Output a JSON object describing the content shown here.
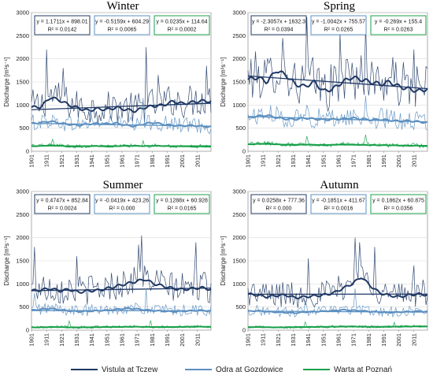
{
  "chart_data": {
    "type": "line",
    "x_ticks": [
      "1901",
      "1911",
      "1921",
      "1931",
      "1941",
      "1951",
      "1961",
      "1971",
      "1981",
      "1991",
      "2001",
      "2011"
    ],
    "x_range": [
      1901,
      2020
    ],
    "ylabel": "Discharge [m³s⁻¹]",
    "ylim": [
      0,
      3000
    ],
    "y_ticks": [
      0,
      500,
      1000,
      1500,
      2000,
      2500,
      3000
    ],
    "legend": {
      "position": "bottom",
      "entries": [
        {
          "name": "Vistula at Tczew",
          "color": "#1f3864"
        },
        {
          "name": "Odra at Gozdowice",
          "color": "#5b8fc0"
        },
        {
          "name": "Warta at Poznań",
          "color": "#19a04a"
        }
      ]
    },
    "panels": [
      {
        "title": "Winter",
        "equations": [
          {
            "eq": "y = 1.1711x + 898.01",
            "r2": "R² = 0.0142",
            "series": "Vistula at Tczew"
          },
          {
            "eq": "y = -0.5159x + 604.29",
            "r2": "R² = 0.0065",
            "series": "Odra at Gozdowice"
          },
          {
            "eq": "y = 0.0235x + 114.64",
            "r2": "R² = 0.0002",
            "series": "Warta at Poznań"
          }
        ],
        "series": [
          {
            "name": "Vistula at Tczew",
            "mean": 968,
            "amp": 360,
            "smooth": [
              950,
              960,
              1170,
              1100,
              1000,
              930,
              880,
              920,
              900,
              950,
              900,
              870,
              950,
              980,
              1000,
              1080,
              1030,
              1060,
              1090,
              1080
            ],
            "peaks": [
              [
                1911,
                2200
              ],
              [
                1922,
                1800
              ],
              [
                1977,
                2250
              ],
              [
                1985,
                1650
              ],
              [
                2017,
                1850
              ]
            ]
          },
          {
            "name": "Odra at Gozdowice",
            "mean": 573,
            "amp": 180,
            "smooth": [
              600,
              620,
              650,
              610,
              580,
              560,
              590,
              600,
              590,
              610,
              560,
              540,
              600,
              620,
              580,
              560,
              550,
              560,
              540,
              530
            ],
            "peaks": [
              [
                1940,
                900
              ],
              [
                1975,
                1150
              ]
            ]
          },
          {
            "name": "Warta at Poznań",
            "mean": 116,
            "amp": 40,
            "smooth": [
              110,
              115,
              130,
              120,
              100,
              105,
              110,
              115,
              100,
              110,
              120,
              118,
              112,
              120,
              115,
              105,
              110,
              100,
              105,
              100
            ],
            "peaks": [
              [
                1915,
                260
              ],
              [
                1975,
                230
              ]
            ]
          }
        ]
      },
      {
        "title": "Spring",
        "equations": [
          {
            "eq": "y = -2.3057x + 1632.3",
            "r2": "R² = 0.0394",
            "series": "Vistula at Tczew"
          },
          {
            "eq": "y = -1.0042x + 755.57",
            "r2": "R² = 0.0265",
            "series": "Odra at Gozdowice"
          },
          {
            "eq": "y = -0.269x + 155.4",
            "r2": "R² = 0.0263",
            "series": "Warta at Poznań"
          }
        ],
        "series": [
          {
            "name": "Vistula at Tczew",
            "mean": 1495,
            "amp": 520,
            "smooth": [
              1550,
              1600,
              1500,
              1750,
              1650,
              1450,
              1400,
              1500,
              1300,
              1350,
              1500,
              1600,
              1550,
              1500,
              1450,
              1500,
              1400,
              1350,
              1300,
              1350
            ],
            "peaks": [
              [
                1924,
                2450
              ],
              [
                1940,
                2900
              ],
              [
                1962,
                2550
              ],
              [
                1979,
                2750
              ],
              [
                2011,
                2200
              ]
            ]
          },
          {
            "name": "Odra at Gozdowice",
            "mean": 695,
            "amp": 220,
            "smooth": [
              720,
              760,
              780,
              730,
              700,
              690,
              720,
              700,
              680,
              690,
              700,
              720,
              700,
              680,
              690,
              670,
              650,
              660,
              640,
              620
            ],
            "peaks": [
              [
                1940,
                1000
              ],
              [
                1979,
                1200
              ]
            ]
          },
          {
            "name": "Warta at Poznań",
            "mean": 139,
            "amp": 50,
            "smooth": [
              150,
              160,
              170,
              150,
              140,
              135,
              145,
              140,
              130,
              140,
              150,
              145,
              140,
              135,
              130,
              130,
              125,
              120,
              120,
              115
            ],
            "peaks": [
              [
                1940,
                330
              ],
              [
                1979,
                360
              ]
            ]
          }
        ]
      },
      {
        "title": "Summer",
        "equations": [
          {
            "eq": "y = 0.4747x + 852.84",
            "r2": "R² = 0.0024",
            "series": "Vistula at Tczew"
          },
          {
            "eq": "y = -0.0419x + 423.26",
            "r2": "R² = 0.000",
            "series": "Odra at Gozdowice"
          },
          {
            "eq": "y = 0.1288x + 60.928",
            "r2": "R² = 0.0165",
            "series": "Warta at Poznań"
          }
        ],
        "series": [
          {
            "name": "Vistula at Tczew",
            "mean": 880,
            "amp": 330,
            "smooth": [
              850,
              870,
              900,
              850,
              880,
              820,
              850,
              860,
              900,
              950,
              1000,
              1050,
              1100,
              1000,
              950,
              900,
              880,
              900,
              920,
              880
            ],
            "peaks": [
              [
                1903,
                1800
              ],
              [
                1931,
                1600
              ],
              [
                1972,
                1850
              ],
              [
                1974,
                2050
              ],
              [
                2010,
                1900
              ]
            ]
          },
          {
            "name": "Odra at Gozdowice",
            "mean": 420,
            "amp": 130,
            "smooth": [
              430,
              450,
              470,
              440,
              420,
              400,
              410,
              420,
              430,
              450,
              470,
              460,
              440,
              420,
              410,
              400,
              410,
              420,
              430,
              410
            ],
            "peaks": [
              [
                1903,
                800
              ],
              [
                1977,
                900
              ]
            ]
          },
          {
            "name": "Warta at Poznań",
            "mean": 68,
            "amp": 30,
            "smooth": [
              60,
              62,
              70,
              65,
              60,
              58,
              62,
              65,
              68,
              70,
              72,
              75,
              70,
              68,
              65,
              66,
              70,
              72,
              75,
              70
            ],
            "peaks": [
              [
                1926,
                200
              ],
              [
                1980,
                210
              ]
            ]
          }
        ]
      },
      {
        "title": "Autumn",
        "equations": [
          {
            "eq": "y = 0.0258x + 777.36",
            "r2": "R² = 0.000",
            "series": "Vistula at Tczew"
          },
          {
            "eq": "y = -0.1851x + 411.67",
            "r2": "R² = 0.0016",
            "series": "Odra at Gozdowice"
          },
          {
            "eq": "y = 0.1862x + 60.875",
            "r2": "R² = 0.0356",
            "series": "Warta at Poznań"
          }
        ],
        "series": [
          {
            "name": "Vistula at Tczew",
            "mean": 780,
            "amp": 300,
            "smooth": [
              780,
              760,
              720,
              750,
              760,
              700,
              720,
              740,
              760,
              800,
              900,
              1000,
              1150,
              950,
              800,
              750,
              720,
              760,
              780,
              760
            ],
            "peaks": [
              [
                1941,
                1550
              ],
              [
                1972,
                2000
              ],
              [
                1975,
                1900
              ],
              [
                1985,
                1800
              ],
              [
                2011,
                1400
              ]
            ]
          },
          {
            "name": "Odra at Gozdowice",
            "mean": 400,
            "amp": 110,
            "smooth": [
              410,
              420,
              400,
              390,
              380,
              370,
              390,
              400,
              410,
              420,
              440,
              430,
              420,
              400,
              390,
              380,
              390,
              400,
              410,
              400
            ],
            "peaks": [
              [
                1939,
                650
              ],
              [
                1972,
                900
              ]
            ]
          },
          {
            "name": "Warta at Poznań",
            "mean": 72,
            "amp": 30,
            "smooth": [
              65,
              68,
              62,
              60,
              62,
              65,
              68,
              70,
              72,
              75,
              78,
              80,
              76,
              72,
              70,
              72,
              75,
              78,
              80,
              78
            ],
            "peaks": [
              [
                1939,
                180
              ],
              [
                1998,
                170
              ]
            ]
          }
        ]
      }
    ]
  }
}
